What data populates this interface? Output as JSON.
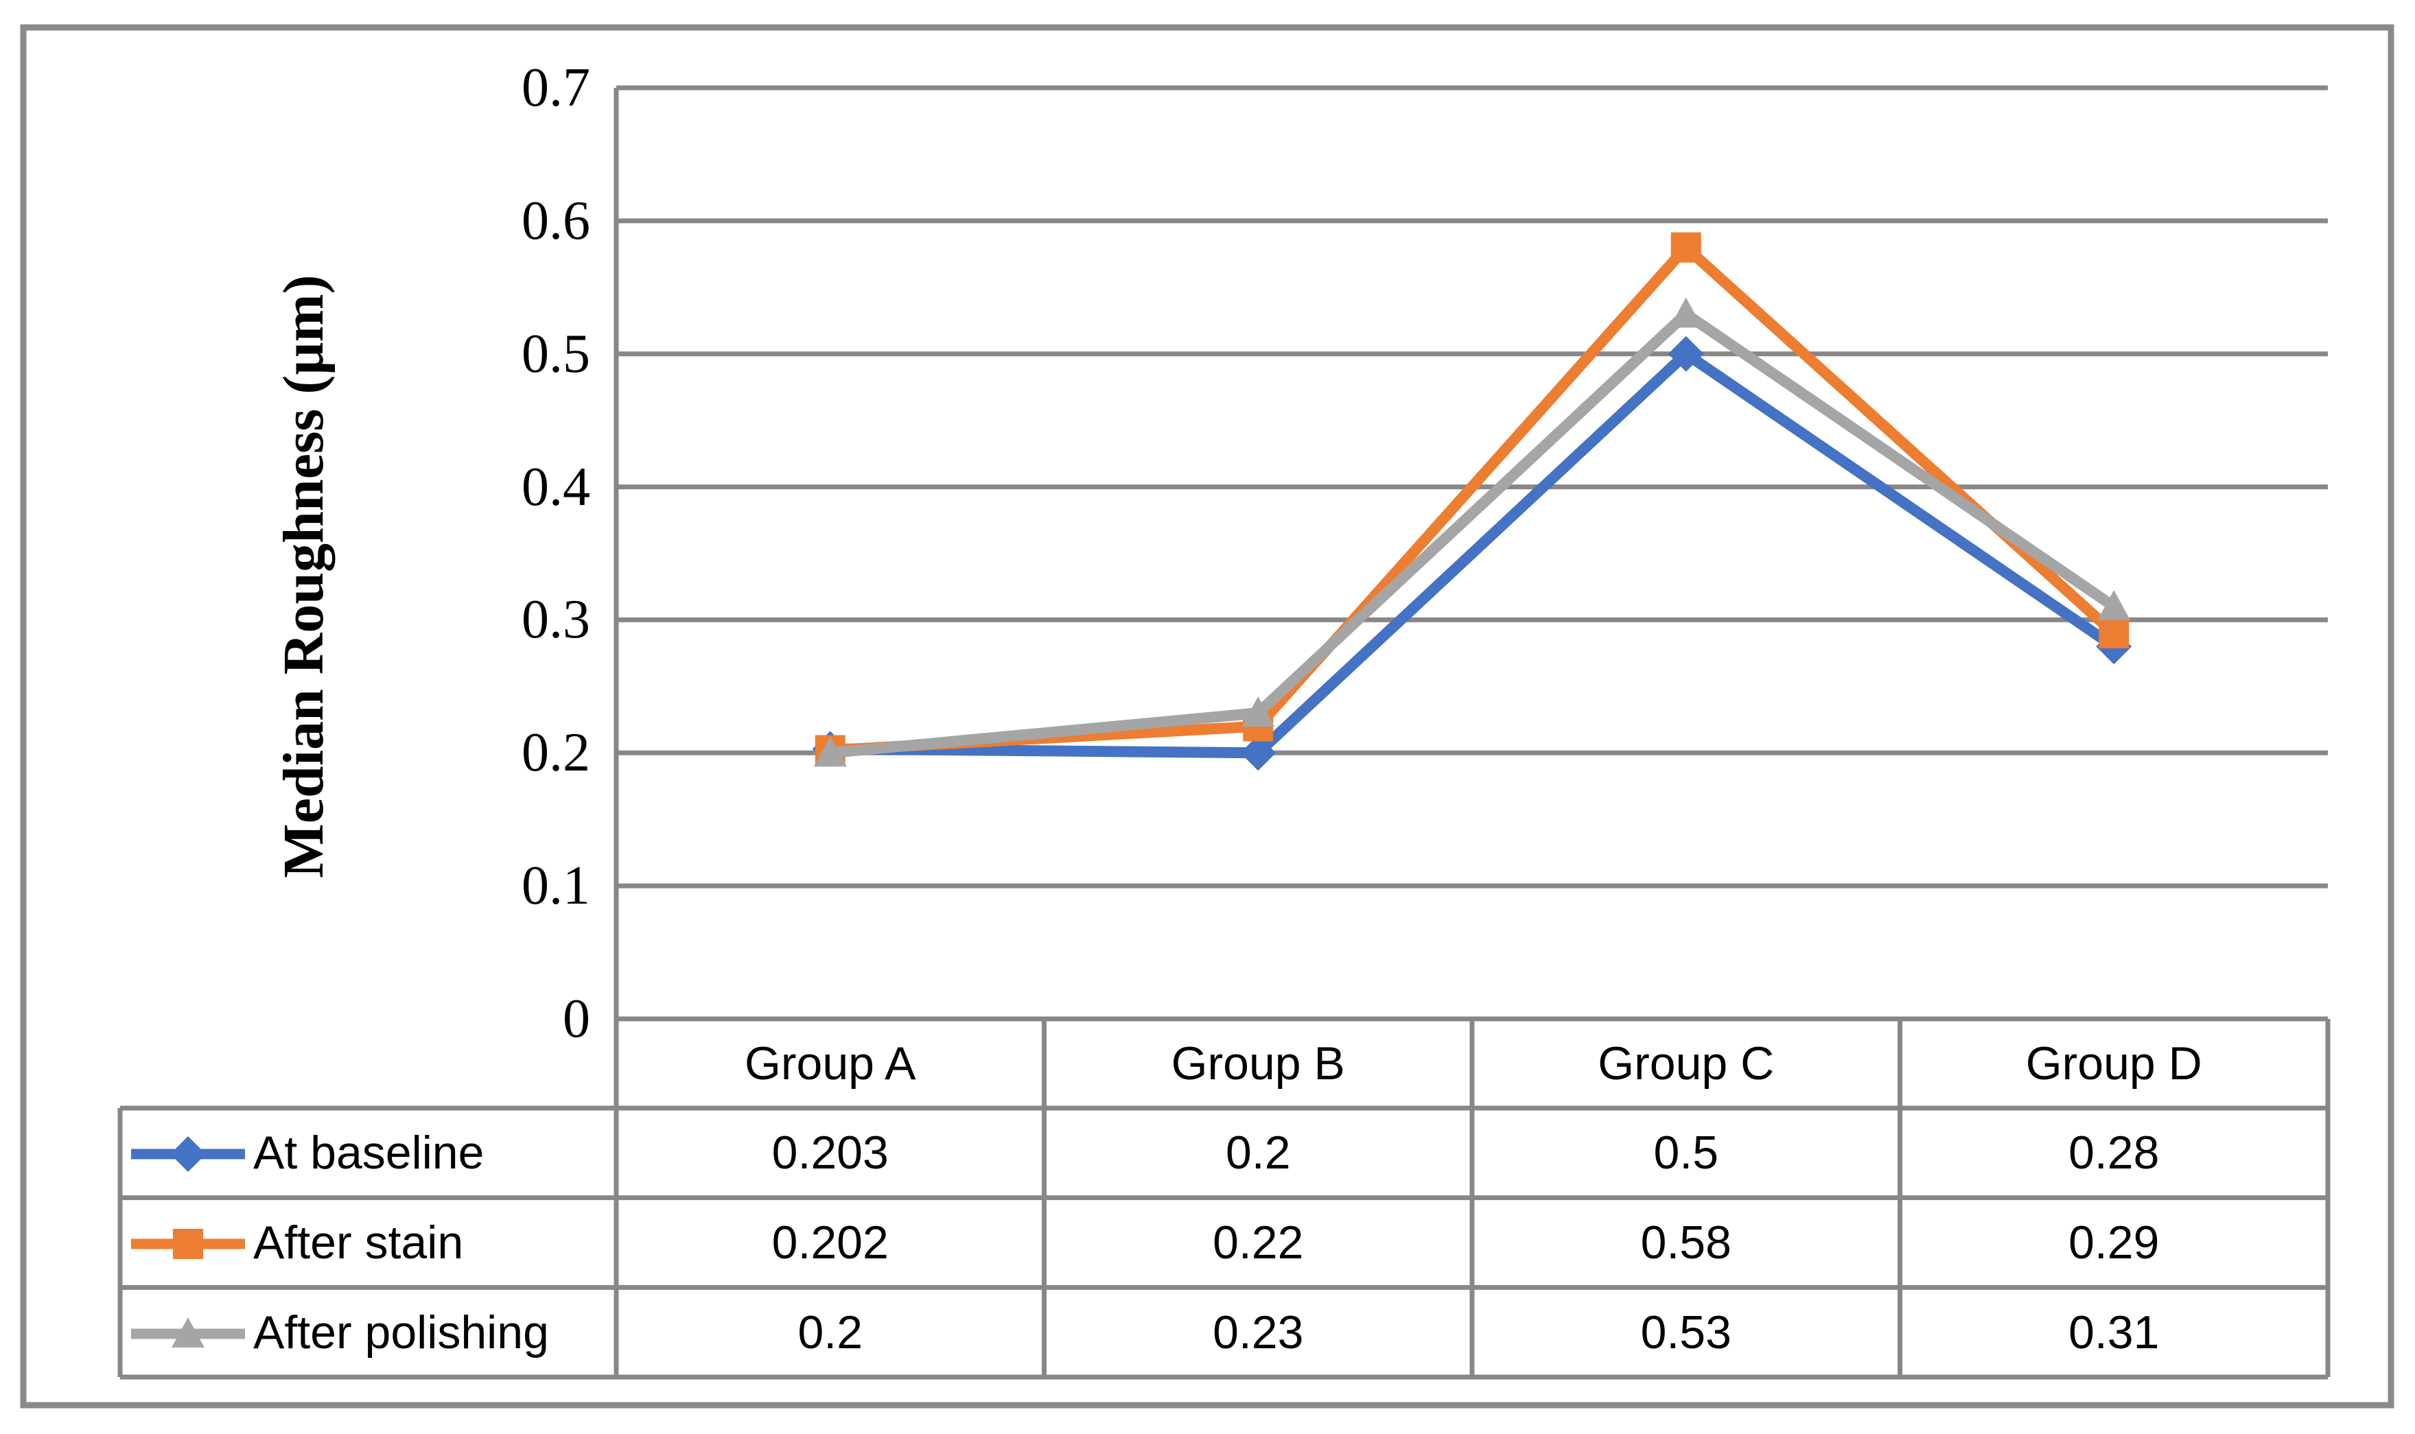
{
  "chart": {
    "axis_title": "Median Roughness (µm)",
    "y_ticks": [
      "0.7",
      "0.6",
      "0.5",
      "0.4",
      "0.3",
      "0.2",
      "0.1",
      "0"
    ]
  },
  "chart_data": {
    "type": "line",
    "title": "",
    "xlabel": "",
    "ylabel": "Median Roughness (µm)",
    "ylim": [
      0,
      0.7
    ],
    "ytick_step": 0.1,
    "grid": true,
    "legend_position": "table-left",
    "categories": [
      "Group A",
      "Group B",
      "Group C",
      "Group D"
    ],
    "series": [
      {
        "name": "At baseline",
        "color": "#4472C4",
        "marker": "diamond",
        "values": [
          0.203,
          0.2,
          0.5,
          0.28
        ]
      },
      {
        "name": "After stain",
        "color": "#ED7D31",
        "marker": "square",
        "values": [
          0.202,
          0.22,
          0.58,
          0.29
        ]
      },
      {
        "name": "After polishing",
        "color": "#A5A5A5",
        "marker": "triangle",
        "values": [
          0.2,
          0.23,
          0.53,
          0.31
        ]
      }
    ]
  },
  "table": {
    "headers": [
      "Group A",
      "Group B",
      "Group C",
      "Group D"
    ],
    "rows": [
      {
        "label": "At baseline",
        "values": [
          "0.203",
          "0.2",
          "0.5",
          "0.28"
        ]
      },
      {
        "label": "After stain",
        "values": [
          "0.202",
          "0.22",
          "0.58",
          "0.29"
        ]
      },
      {
        "label": "After polishing",
        "values": [
          "0.2",
          "0.23",
          "0.53",
          "0.31"
        ]
      }
    ]
  },
  "colors": {
    "grid": "#878787",
    "border": "#8a8a8a",
    "text": "#000000",
    "background": "#ffffff"
  }
}
